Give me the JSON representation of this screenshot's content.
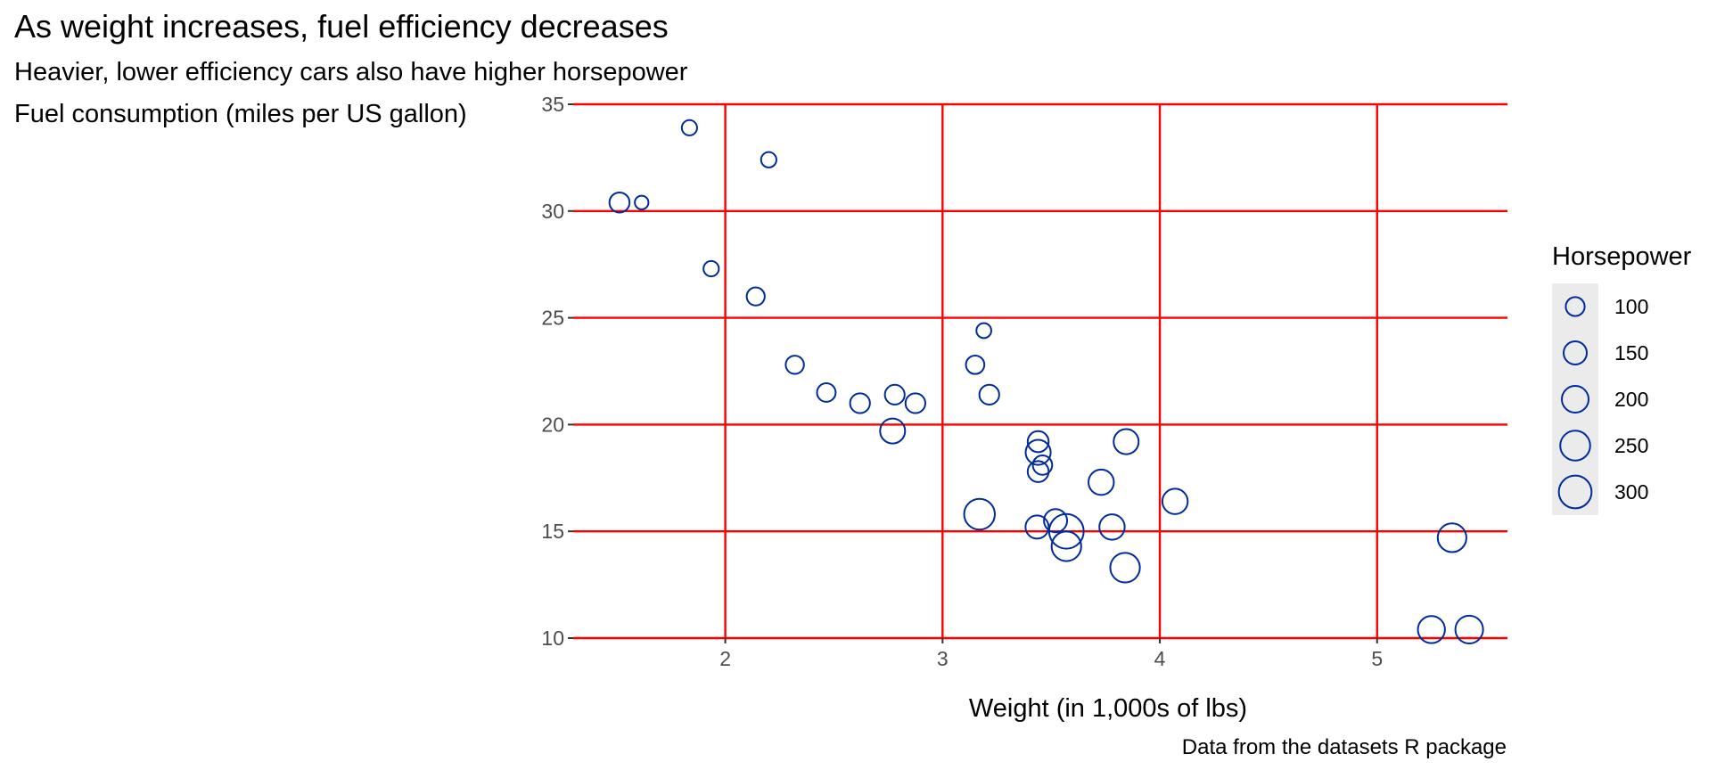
{
  "chart_data": {
    "type": "scatter",
    "title": "As weight increases, fuel efficiency decreases",
    "subtitle": "Heavier, lower efficiency cars also have higher horsepower",
    "ylabel": "Fuel consumption (miles per US gallon)",
    "xlabel": "Weight (in 1,000s of lbs)",
    "caption": "Data from the datasets R package",
    "xlim": [
      1.3,
      5.6
    ],
    "ylim": [
      10,
      35
    ],
    "x_ticks": [
      2,
      3,
      4,
      5
    ],
    "y_ticks": [
      10,
      15,
      20,
      25,
      30,
      35
    ],
    "grid": "major",
    "grid_color": "#ff0000",
    "point_color": "#002b9c",
    "size_variable": "Horsepower",
    "legend": {
      "title": "Horsepower",
      "position": "right",
      "breaks": [
        100,
        150,
        200,
        250,
        300
      ],
      "key_background": "#ebebeb"
    },
    "points": [
      {
        "wt": 2.62,
        "mpg": 21.0,
        "hp": 110
      },
      {
        "wt": 2.875,
        "mpg": 21.0,
        "hp": 110
      },
      {
        "wt": 2.32,
        "mpg": 22.8,
        "hp": 93
      },
      {
        "wt": 3.215,
        "mpg": 21.4,
        "hp": 110
      },
      {
        "wt": 3.44,
        "mpg": 18.7,
        "hp": 175
      },
      {
        "wt": 3.46,
        "mpg": 18.1,
        "hp": 105
      },
      {
        "wt": 3.57,
        "mpg": 14.3,
        "hp": 245
      },
      {
        "wt": 3.19,
        "mpg": 24.4,
        "hp": 62
      },
      {
        "wt": 3.15,
        "mpg": 22.8,
        "hp": 95
      },
      {
        "wt": 3.44,
        "mpg": 19.2,
        "hp": 123
      },
      {
        "wt": 3.44,
        "mpg": 17.8,
        "hp": 123
      },
      {
        "wt": 4.07,
        "mpg": 16.4,
        "hp": 180
      },
      {
        "wt": 3.73,
        "mpg": 17.3,
        "hp": 180
      },
      {
        "wt": 3.78,
        "mpg": 15.2,
        "hp": 180
      },
      {
        "wt": 5.25,
        "mpg": 10.4,
        "hp": 205
      },
      {
        "wt": 5.424,
        "mpg": 10.4,
        "hp": 215
      },
      {
        "wt": 5.345,
        "mpg": 14.7,
        "hp": 230
      },
      {
        "wt": 2.2,
        "mpg": 32.4,
        "hp": 66
      },
      {
        "wt": 1.615,
        "mpg": 30.4,
        "hp": 52
      },
      {
        "wt": 1.835,
        "mpg": 33.9,
        "hp": 65
      },
      {
        "wt": 2.465,
        "mpg": 21.5,
        "hp": 97
      },
      {
        "wt": 3.52,
        "mpg": 15.5,
        "hp": 150
      },
      {
        "wt": 3.435,
        "mpg": 15.2,
        "hp": 150
      },
      {
        "wt": 3.84,
        "mpg": 13.3,
        "hp": 245
      },
      {
        "wt": 3.845,
        "mpg": 19.2,
        "hp": 175
      },
      {
        "wt": 1.935,
        "mpg": 27.3,
        "hp": 66
      },
      {
        "wt": 2.14,
        "mpg": 26.0,
        "hp": 91
      },
      {
        "wt": 1.513,
        "mpg": 30.4,
        "hp": 113
      },
      {
        "wt": 3.17,
        "mpg": 15.8,
        "hp": 264
      },
      {
        "wt": 2.77,
        "mpg": 19.7,
        "hp": 175
      },
      {
        "wt": 3.57,
        "mpg": 15.0,
        "hp": 335
      },
      {
        "wt": 2.78,
        "mpg": 21.4,
        "hp": 109
      }
    ]
  }
}
